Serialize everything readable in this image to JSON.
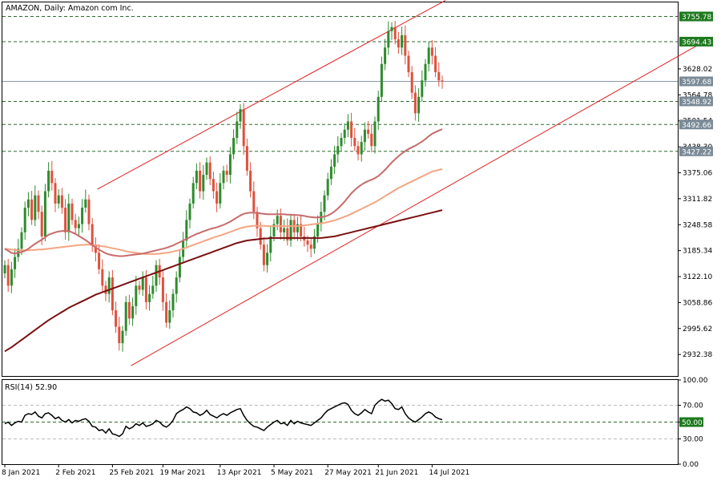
{
  "chart_title": "AMAZON, Daily:  Amazon com Inc.",
  "rsi_label": "RSI(14) 52.90",
  "colors": {
    "bull": "#2e8b2e",
    "bear": "#e0503c",
    "channel": "#e02020",
    "ma_fast": "#c76b6b",
    "ma_mid": "#f4a582",
    "ma_slow": "#7a1010",
    "level_line": "#2e6b2e",
    "current_price_line": "#8a9aa8",
    "badge_green": "#1f7a1f",
    "badge_gray": "#7a8a96"
  },
  "chart_data": [
    {
      "type": "candlestick",
      "ylim": [
        2880,
        3790
      ],
      "y_ticks": [
        "3628.02",
        "3564.78",
        "3501.54",
        "3438.30",
        "3375.06",
        "3311.82",
        "3248.58",
        "3185.34",
        "3122.10",
        "3058.86",
        "2995.62",
        "2932.38"
      ],
      "x_ticks": [
        "8 Jan 2021",
        "2 Feb 2021",
        "25 Feb 2021",
        "19 Mar 2021",
        "13 Apr 2021",
        "5 May 2021",
        "27 May 2021",
        "21 Jun 2021",
        "14 Jul 2021"
      ],
      "x_tick_index": [
        0,
        16,
        32,
        47,
        64,
        80,
        96,
        111,
        127
      ],
      "levels": [
        {
          "value": 3755.78,
          "label": "3755.78",
          "style": "green"
        },
        {
          "value": 3694.43,
          "label": "3694.43",
          "style": "green"
        },
        {
          "value": 3597.68,
          "label": "3597.68",
          "style": "gray"
        },
        {
          "value": 3548.92,
          "label": "3548.92",
          "style": "gray"
        },
        {
          "value": 3492.66,
          "label": "3492.66",
          "style": "gray"
        },
        {
          "value": 3427.22,
          "label": "3427.22",
          "style": "gray"
        }
      ],
      "channel": [
        {
          "x1": 27.5,
          "y1": 3335,
          "x2": 131,
          "y2": 3795
        },
        {
          "x1": 37.5,
          "y1": 2905,
          "x2": 209,
          "y2": 3700
        }
      ],
      "close": [
        3150,
        3100,
        3140,
        3170,
        3190,
        3230,
        3290,
        3310,
        3260,
        3320,
        3280,
        3220,
        3330,
        3380,
        3350,
        3300,
        3320,
        3290,
        3230,
        3300,
        3260,
        3240,
        3250,
        3290,
        3310,
        3250,
        3200,
        3180,
        3140,
        3100,
        3080,
        3120,
        3040,
        3000,
        2960,
        2990,
        3060,
        3020,
        3050,
        3100,
        3090,
        3120,
        3060,
        3080,
        3100,
        3150,
        3120,
        3060,
        3010,
        3040,
        3080,
        3120,
        3170,
        3210,
        3260,
        3300,
        3350,
        3380,
        3330,
        3370,
        3400,
        3360,
        3330,
        3300,
        3350,
        3380,
        3370,
        3420,
        3460,
        3500,
        3530,
        3440,
        3380,
        3330,
        3280,
        3240,
        3200,
        3150,
        3180,
        3220,
        3250,
        3270,
        3230,
        3240,
        3210,
        3260,
        3230,
        3250,
        3220,
        3210,
        3200,
        3190,
        3220,
        3250,
        3280,
        3320,
        3360,
        3390,
        3420,
        3440,
        3460,
        3480,
        3500,
        3460,
        3440,
        3420,
        3450,
        3480,
        3470,
        3440,
        3500,
        3560,
        3640,
        3680,
        3720,
        3730,
        3700,
        3680,
        3710,
        3660,
        3620,
        3570,
        3520,
        3560,
        3600,
        3640,
        3680,
        3660,
        3620,
        3600,
        3597.68
      ],
      "ma_fast": [
        3190,
        3185,
        3180,
        3178,
        3180,
        3182,
        3185,
        3190,
        3196,
        3202,
        3207,
        3212,
        3218,
        3224,
        3227,
        3230,
        3232,
        3233,
        3234,
        3233,
        3230,
        3226,
        3221,
        3216,
        3211,
        3205,
        3199,
        3193,
        3188,
        3183,
        3179,
        3176,
        3174,
        3173,
        3172,
        3172,
        3173,
        3174,
        3175,
        3176,
        3177,
        3178,
        3180,
        3182,
        3184,
        3186,
        3188,
        3190,
        3192,
        3195,
        3198,
        3202,
        3206,
        3210,
        3214,
        3218,
        3222,
        3226,
        3229,
        3232,
        3235,
        3238,
        3240,
        3242,
        3245,
        3248,
        3252,
        3256,
        3261,
        3266,
        3271,
        3275,
        3277,
        3278,
        3278,
        3277,
        3276,
        3275,
        3274,
        3274,
        3274,
        3274,
        3274,
        3274,
        3273,
        3273,
        3272,
        3272,
        3271,
        3270,
        3268,
        3267,
        3266,
        3266,
        3267,
        3268,
        3271,
        3275,
        3281,
        3288,
        3296,
        3305,
        3315,
        3325,
        3333,
        3340,
        3346,
        3351,
        3355,
        3358,
        3362,
        3367,
        3374,
        3382,
        3391,
        3400,
        3408,
        3415,
        3422,
        3428,
        3433,
        3437,
        3441,
        3446,
        3451,
        3457,
        3464,
        3470,
        3474,
        3478,
        3481
      ],
      "ma_mid": [
        3190,
        3189,
        3188,
        3187,
        3186,
        3186,
        3186,
        3186,
        3187,
        3187,
        3188,
        3188,
        3189,
        3190,
        3191,
        3192,
        3193,
        3194,
        3195,
        3196,
        3197,
        3198,
        3199,
        3199,
        3200,
        3200,
        3199,
        3198,
        3197,
        3196,
        3195,
        3193,
        3191,
        3190,
        3188,
        3186,
        3184,
        3182,
        3181,
        3180,
        3179,
        3178,
        3177,
        3177,
        3177,
        3177,
        3178,
        3179,
        3180,
        3181,
        3183,
        3185,
        3187,
        3190,
        3193,
        3196,
        3199,
        3202,
        3205,
        3208,
        3211,
        3214,
        3217,
        3220,
        3222,
        3225,
        3228,
        3231,
        3234,
        3237,
        3240,
        3242,
        3244,
        3245,
        3246,
        3246,
        3246,
        3246,
        3245,
        3245,
        3245,
        3245,
        3245,
        3245,
        3245,
        3245,
        3245,
        3245,
        3246,
        3247,
        3248,
        3249,
        3250,
        3251,
        3252,
        3253,
        3255,
        3257,
        3259,
        3262,
        3265,
        3268,
        3271,
        3275,
        3279,
        3283,
        3287,
        3291,
        3295,
        3299,
        3303,
        3308,
        3313,
        3318,
        3323,
        3328,
        3333,
        3338,
        3342,
        3346,
        3350,
        3354,
        3358,
        3362,
        3366,
        3370,
        3374,
        3378,
        3380,
        3382,
        3384
      ],
      "ma_slow": [
        2940,
        2945,
        2950,
        2956,
        2962,
        2968,
        2974,
        2980,
        2986,
        2992,
        2998,
        3004,
        3010,
        3016,
        3021,
        3026,
        3031,
        3036,
        3041,
        3046,
        3050,
        3054,
        3058,
        3062,
        3066,
        3070,
        3074,
        3078,
        3081,
        3084,
        3087,
        3090,
        3093,
        3096,
        3099,
        3102,
        3105,
        3108,
        3111,
        3114,
        3117,
        3120,
        3123,
        3126,
        3129,
        3132,
        3135,
        3138,
        3141,
        3144,
        3147,
        3150,
        3153,
        3156,
        3159,
        3162,
        3165,
        3168,
        3171,
        3174,
        3177,
        3180,
        3183,
        3186,
        3189,
        3192,
        3195,
        3198,
        3201,
        3204,
        3206,
        3208,
        3210,
        3211,
        3212,
        3213,
        3214,
        3215,
        3215,
        3216,
        3216,
        3216,
        3216,
        3216,
        3216,
        3216,
        3216,
        3216,
        3216,
        3216,
        3216,
        3216,
        3216,
        3216,
        3216,
        3217,
        3218,
        3219,
        3220,
        3222,
        3224,
        3226,
        3228,
        3230,
        3232,
        3234,
        3236,
        3238,
        3240,
        3242,
        3244,
        3246,
        3248,
        3250,
        3252,
        3254,
        3256,
        3258,
        3260,
        3262,
        3264,
        3266,
        3268,
        3270,
        3272,
        3274,
        3276,
        3278,
        3280,
        3282,
        3284
      ]
    },
    {
      "type": "line",
      "name": "RSI(14)",
      "ylim": [
        0,
        100
      ],
      "y_ticks": [
        "100.00",
        "70.00",
        "50.00",
        "30.00",
        "0.00"
      ],
      "level_label": "50.00",
      "values": [
        48,
        50,
        46,
        49,
        51,
        50,
        58,
        60,
        59,
        62,
        57,
        55,
        60,
        61,
        58,
        54,
        56,
        52,
        50,
        53,
        49,
        52,
        51,
        53,
        54,
        51,
        45,
        44,
        40,
        41,
        37,
        42,
        36,
        35,
        33,
        36,
        45,
        42,
        44,
        48,
        46,
        49,
        45,
        46,
        48,
        52,
        50,
        46,
        44,
        47,
        52,
        60,
        63,
        65,
        68,
        66,
        62,
        61,
        58,
        60,
        64,
        59,
        57,
        55,
        58,
        60,
        58,
        61,
        63,
        65,
        66,
        58,
        52,
        48,
        45,
        44,
        42,
        40,
        44,
        47,
        50,
        52,
        48,
        49,
        46,
        52,
        48,
        51,
        49,
        48,
        47,
        46,
        49,
        52,
        55,
        60,
        64,
        66,
        68,
        70,
        72,
        73,
        71,
        64,
        60,
        58,
        61,
        65,
        62,
        60,
        70,
        74,
        77,
        75,
        76,
        72,
        66,
        65,
        68,
        60,
        55,
        52,
        50,
        53,
        56,
        60,
        62,
        60,
        56,
        54,
        52.9
      ]
    }
  ]
}
